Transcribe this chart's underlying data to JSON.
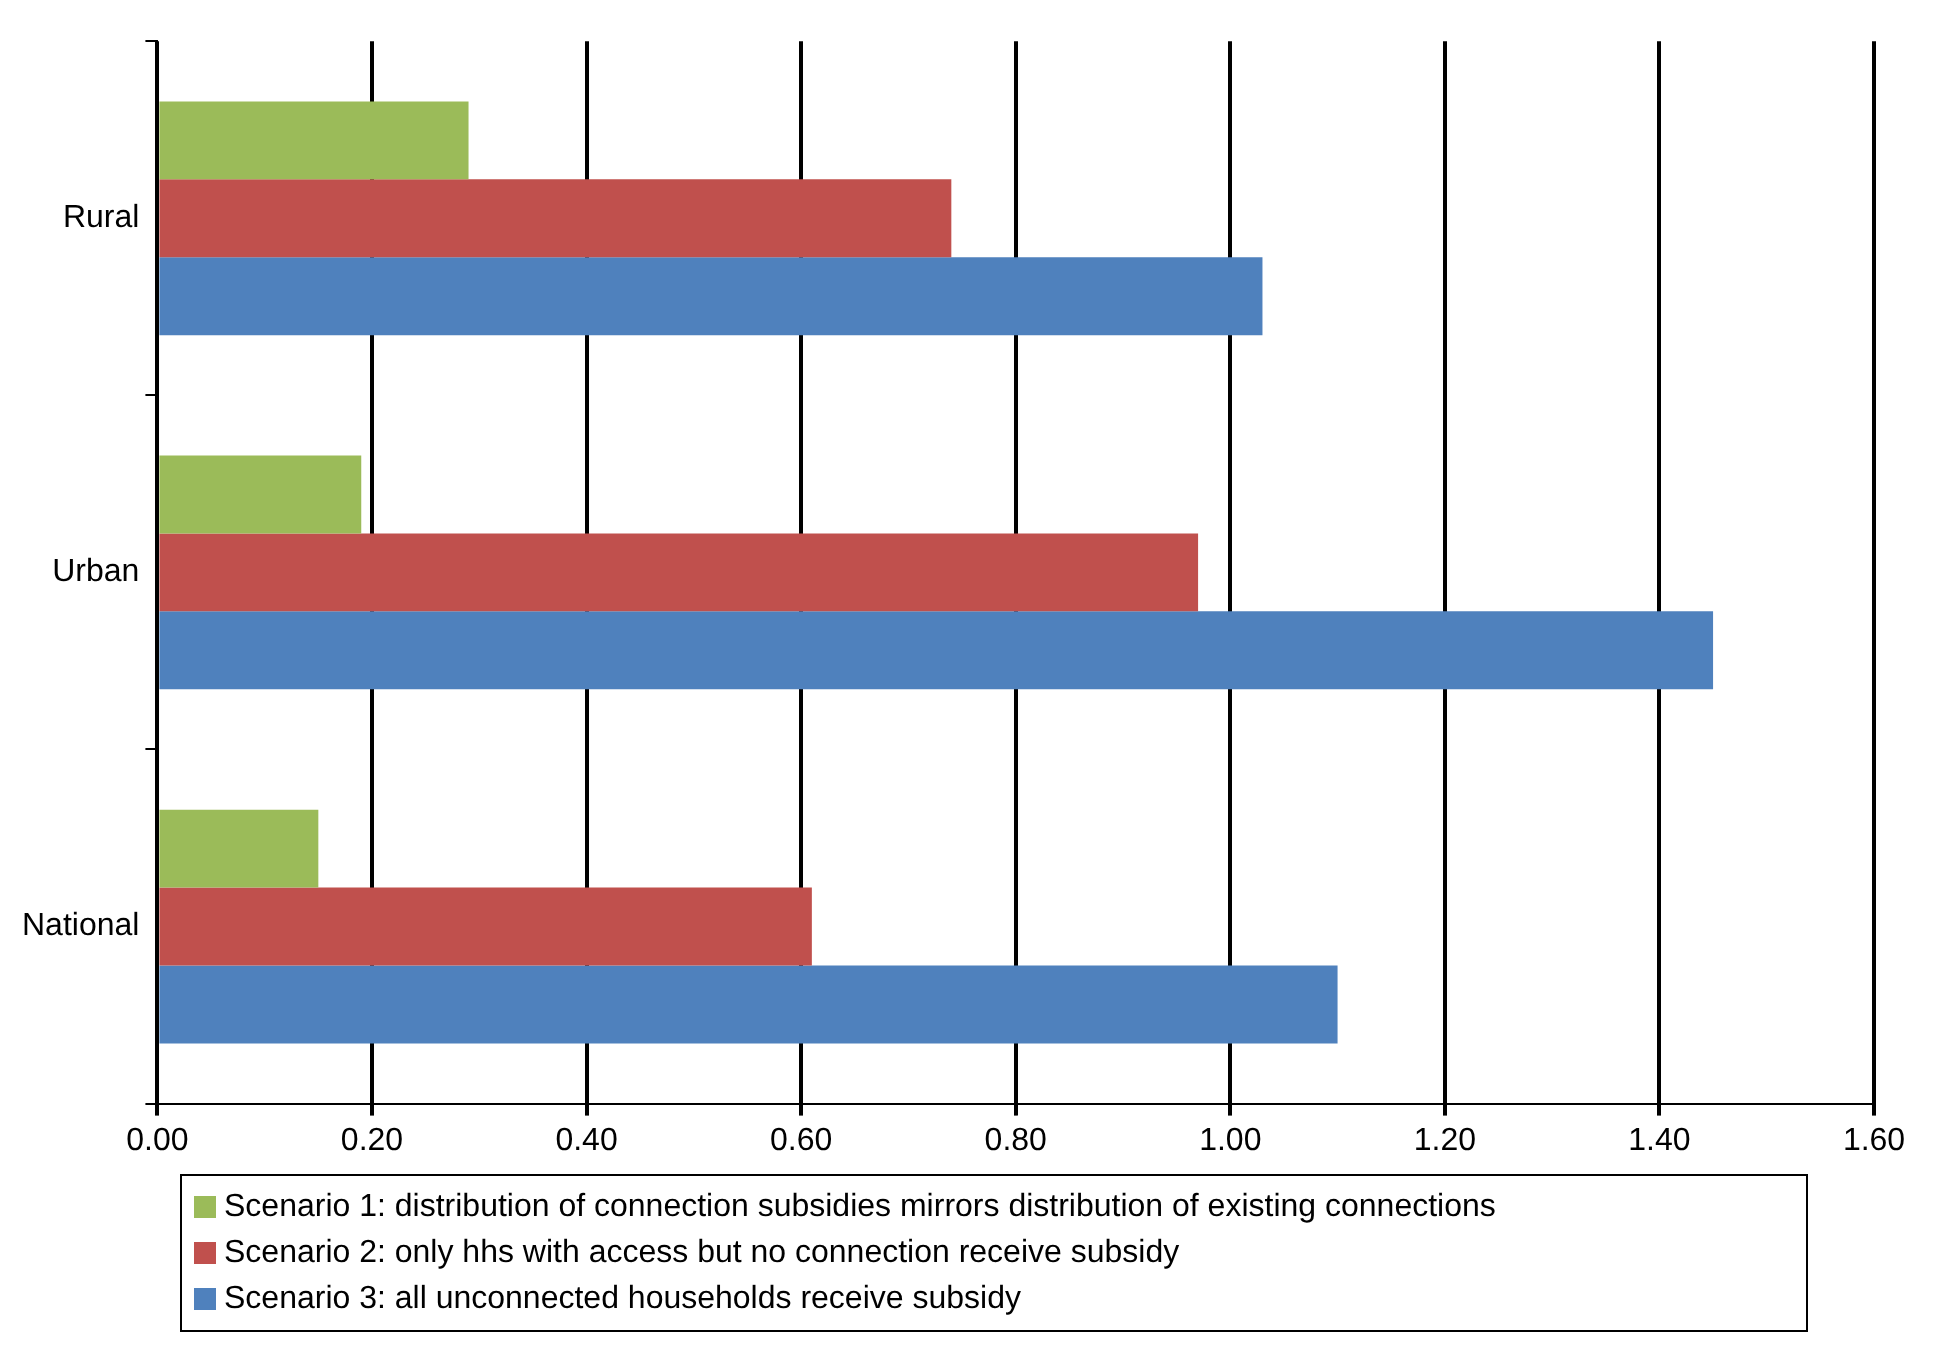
{
  "chart_data": {
    "type": "bar",
    "orientation": "horizontal",
    "categories": [
      "Rural",
      "Urban",
      "National"
    ],
    "series": [
      {
        "name": "Scenario 1: distribution of connection subsidies mirrors distribution of existing connections",
        "color": "#9bbb59",
        "values": [
          0.29,
          0.19,
          0.15
        ]
      },
      {
        "name": "Scenario 2: only hhs with access but no connection receive subsidy",
        "color": "#c0504d",
        "values": [
          0.74,
          0.97,
          0.61
        ]
      },
      {
        "name": "Scenario 3: all unconnected households receive subsidy",
        "color": "#4f81bd",
        "values": [
          1.03,
          1.45,
          1.1
        ]
      }
    ],
    "xlim": [
      0,
      1.6
    ],
    "xticks": [
      {
        "value": 0,
        "label": "0.00"
      },
      {
        "value": 0.2,
        "label": "0.20"
      },
      {
        "value": 0.4,
        "label": "0.40"
      },
      {
        "value": 0.6,
        "label": "0.60"
      },
      {
        "value": 0.8,
        "label": "0.80"
      },
      {
        "value": 1,
        "label": "1.00"
      },
      {
        "value": 1.2,
        "label": "1.20"
      },
      {
        "value": 1.4,
        "label": "1.40"
      },
      {
        "value": 1.6,
        "label": "1.60"
      }
    ],
    "grid": "x",
    "legend": "bottom"
  }
}
